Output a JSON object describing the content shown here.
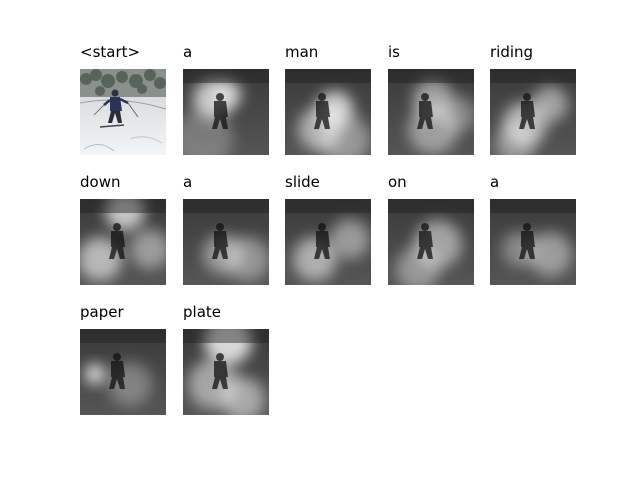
{
  "figure": {
    "panels": [
      {
        "word": "<start>",
        "kind": "photo"
      },
      {
        "word": "a",
        "kind": "attention"
      },
      {
        "word": "man",
        "kind": "attention"
      },
      {
        "word": "is",
        "kind": "attention"
      },
      {
        "word": "riding",
        "kind": "attention"
      },
      {
        "word": "down",
        "kind": "attention"
      },
      {
        "word": "a",
        "kind": "attention"
      },
      {
        "word": "slide",
        "kind": "attention"
      },
      {
        "word": "on",
        "kind": "attention"
      },
      {
        "word": "a",
        "kind": "attention"
      },
      {
        "word": "paper",
        "kind": "attention"
      },
      {
        "word": "plate",
        "kind": "attention"
      }
    ]
  }
}
